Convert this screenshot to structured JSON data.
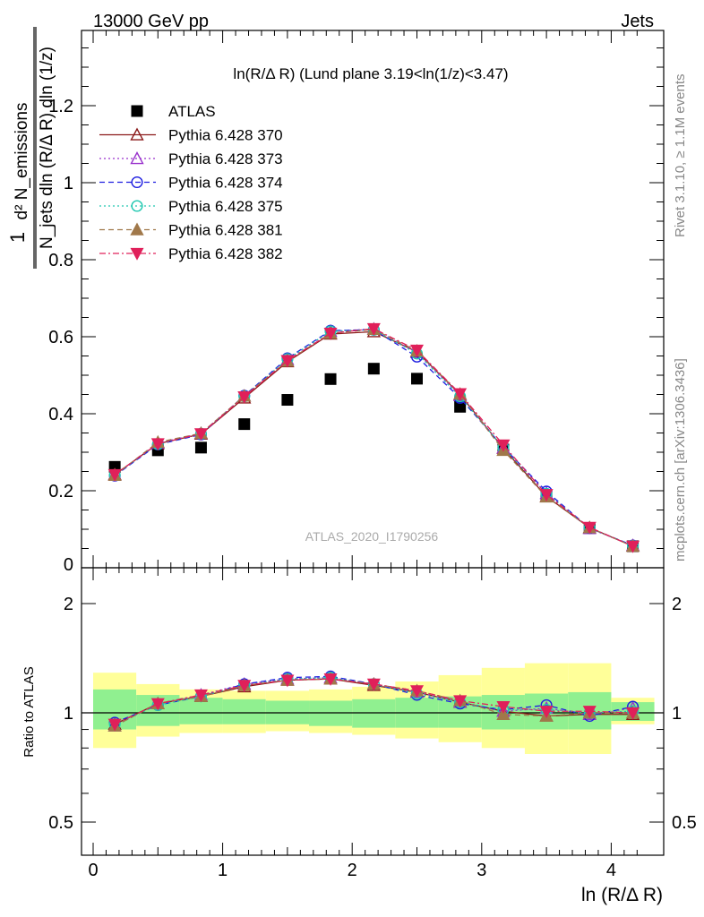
{
  "header": {
    "left": "13000 GeV pp",
    "right": "Jets"
  },
  "side_labels": {
    "rivet": "Rivet 3.1.10, ≥ 1.1M events",
    "mcplots": "mcplots.cern.ch [arXiv:1306.3436]"
  },
  "main_panel": {
    "title": "ln(R/Δ R) (Lund plane 3.19<ln(1/z)<3.47)",
    "watermark": "ATLAS_2020_I1790256",
    "ylabel_numerator": "d² N_emissions",
    "ylabel_denominator": "N_jets dln (R/Δ R) dln (1/z)",
    "ylabel_prefix": "1",
    "y_ticks": [
      "0",
      "0.2",
      "0.4",
      "0.6",
      "0.8",
      "1",
      "1.2"
    ]
  },
  "ratio_panel": {
    "ylabel": "Ratio to ATLAS",
    "y_ticks_left": [
      "0.5",
      "1",
      "2"
    ],
    "y_ticks_right": [
      "0.5",
      "1",
      "2"
    ]
  },
  "x_axis": {
    "label": "ln (R/Δ R)",
    "ticks": [
      "0",
      "1",
      "2",
      "3",
      "4"
    ]
  },
  "colors": {
    "atlas": "#000000",
    "p370": "#8b1a1a",
    "p373": "#9932cc",
    "p374": "#1f1fe0",
    "p375": "#20c8b0",
    "p381": "#a0784a",
    "p382": "#e0205a",
    "band_inner": "#90f090",
    "band_outer": "#ffff99"
  },
  "chart_data": [
    {
      "type": "scatter",
      "title": "ln(R/Δ R) (Lund plane 3.19<ln(1/z)<3.47)",
      "xlabel": "ln (R/Δ R)",
      "ylabel": "1/N_jets d² N_emissions / dln (R/Δ R) dln (1/z)",
      "xlim": [
        -0.1,
        4.4
      ],
      "ylim": [
        0,
        1.38
      ],
      "legend_position": "top-left",
      "x": [
        0.167,
        0.5,
        0.833,
        1.167,
        1.5,
        1.833,
        2.167,
        2.5,
        2.833,
        3.167,
        3.5,
        3.833,
        4.167
      ],
      "x_edges": [
        0.0,
        0.333,
        0.667,
        1.0,
        1.333,
        1.667,
        2.0,
        2.333,
        2.667,
        3.0,
        3.333,
        3.667,
        4.0,
        4.333
      ],
      "series": [
        {
          "name": "ATLAS",
          "key": "atlas",
          "marker": "square",
          "line": "none",
          "values": [
            0.262,
            0.305,
            0.312,
            0.373,
            0.436,
            0.49,
            0.517,
            0.491,
            0.418,
            0.307,
            0.188,
            0.103,
            0.056
          ]
        },
        {
          "name": "Pythia 6.428 370",
          "key": "p370",
          "marker": "triangle-open",
          "line": "solid",
          "values": [
            0.242,
            0.322,
            0.347,
            0.441,
            0.535,
            0.607,
            0.613,
            0.561,
            0.45,
            0.31,
            0.185,
            0.104,
            0.056
          ]
        },
        {
          "name": "Pythia 6.428 373",
          "key": "p373",
          "marker": "triangle-open",
          "line": "dotted",
          "values": [
            0.24,
            0.324,
            0.349,
            0.446,
            0.541,
            0.614,
            0.62,
            0.559,
            0.447,
            0.311,
            0.193,
            0.102,
            0.058
          ]
        },
        {
          "name": "Pythia 6.428 374",
          "key": "p374",
          "marker": "circle-open",
          "line": "dashed",
          "values": [
            0.239,
            0.32,
            0.346,
            0.447,
            0.544,
            0.616,
            0.618,
            0.548,
            0.441,
            0.313,
            0.198,
            0.103,
            0.058
          ]
        },
        {
          "name": "Pythia 6.428 375",
          "key": "p375",
          "marker": "circle-open",
          "line": "dotted",
          "values": [
            0.241,
            0.321,
            0.348,
            0.445,
            0.542,
            0.614,
            0.618,
            0.556,
            0.445,
            0.312,
            0.192,
            0.104,
            0.057
          ]
        },
        {
          "name": "Pythia 6.428 381",
          "key": "p381",
          "marker": "triangle-filled",
          "line": "dashed",
          "values": [
            0.24,
            0.326,
            0.349,
            0.446,
            0.537,
            0.609,
            0.619,
            0.563,
            0.451,
            0.305,
            0.184,
            0.104,
            0.056
          ]
        },
        {
          "name": "Pythia 6.428 382",
          "key": "p382",
          "marker": "triangledown-filled",
          "line": "dashdot",
          "values": [
            0.242,
            0.322,
            0.348,
            0.444,
            0.538,
            0.609,
            0.621,
            0.565,
            0.452,
            0.319,
            0.19,
            0.105,
            0.056
          ]
        }
      ]
    },
    {
      "type": "line",
      "title": "",
      "xlabel": "ln (R/Δ R)",
      "ylabel": "Ratio to ATLAS",
      "ylim": [
        0.4,
        2.4
      ],
      "y_scale": "log",
      "x": [
        0.167,
        0.5,
        0.833,
        1.167,
        1.5,
        1.833,
        2.167,
        2.5,
        2.833,
        3.167,
        3.5,
        3.833,
        4.167
      ],
      "x_edges": [
        0.0,
        0.333,
        0.667,
        1.0,
        1.333,
        1.667,
        2.0,
        2.333,
        2.667,
        3.0,
        3.333,
        3.667,
        4.0,
        4.333
      ],
      "band_inner": {
        "lower": [
          0.9,
          0.92,
          0.93,
          0.93,
          0.93,
          0.92,
          0.91,
          0.91,
          0.91,
          0.9,
          0.9,
          0.9,
          0.95
        ],
        "upper": [
          1.16,
          1.12,
          1.1,
          1.09,
          1.08,
          1.08,
          1.09,
          1.1,
          1.11,
          1.12,
          1.13,
          1.14,
          1.07
        ]
      },
      "band_outer": {
        "lower": [
          0.8,
          0.86,
          0.88,
          0.88,
          0.89,
          0.88,
          0.87,
          0.85,
          0.83,
          0.8,
          0.77,
          0.77,
          0.93
        ],
        "upper": [
          1.29,
          1.2,
          1.16,
          1.15,
          1.15,
          1.16,
          1.18,
          1.22,
          1.27,
          1.33,
          1.37,
          1.37,
          1.1
        ]
      },
      "series": [
        {
          "name": "Pythia 6.428 370",
          "key": "p370",
          "values": [
            0.93,
            1.06,
            1.11,
            1.18,
            1.23,
            1.24,
            1.19,
            1.14,
            1.07,
            1.01,
            0.98,
            0.99,
            0.99
          ]
        },
        {
          "name": "Pythia 6.428 373",
          "key": "p373",
          "values": [
            0.92,
            1.06,
            1.12,
            1.2,
            1.24,
            1.25,
            1.2,
            1.14,
            1.07,
            1.01,
            1.03,
            0.99,
            1.03
          ]
        },
        {
          "name": "Pythia 6.428 374",
          "key": "p374",
          "values": [
            0.94,
            1.05,
            1.11,
            1.2,
            1.25,
            1.26,
            1.2,
            1.12,
            1.06,
            1.02,
            1.05,
            0.98,
            1.04
          ]
        },
        {
          "name": "Pythia 6.428 375",
          "key": "p375",
          "values": [
            0.93,
            1.05,
            1.11,
            1.19,
            1.24,
            1.25,
            1.2,
            1.13,
            1.07,
            1.02,
            1.02,
            1.0,
            1.01
          ]
        },
        {
          "name": "Pythia 6.428 381",
          "key": "p381",
          "values": [
            0.92,
            1.06,
            1.11,
            1.19,
            1.23,
            1.24,
            1.2,
            1.15,
            1.08,
            0.99,
            0.98,
            1.0,
            1.0
          ]
        },
        {
          "name": "Pythia 6.428 382",
          "key": "p382",
          "values": [
            0.93,
            1.06,
            1.12,
            1.19,
            1.23,
            1.24,
            1.2,
            1.15,
            1.08,
            1.04,
            1.01,
            1.01,
            1.0
          ]
        }
      ]
    }
  ]
}
